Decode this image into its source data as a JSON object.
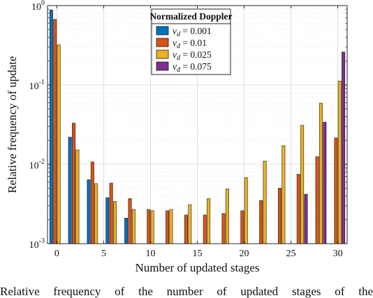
{
  "chart_data": {
    "type": "bar",
    "xlabel": "Number of updated stages",
    "ylabel": "Relative frequency of update",
    "yscale": "log",
    "ylim": [
      0.001,
      1
    ],
    "xlim": [
      -1,
      31
    ],
    "grid": "on",
    "legend": {
      "title": "Normalized Doppler",
      "placement": "top-center",
      "entries": [
        "ν_d = 0.001",
        "ν_d = 0.01",
        "ν_d = 0.025",
        "ν_d = 0.075"
      ]
    },
    "xticks": [
      0,
      5,
      10,
      15,
      20,
      25,
      30
    ],
    "yticks": [
      {
        "value": 1,
        "base": "10",
        "exp": "0"
      },
      {
        "value": 0.1,
        "base": "10",
        "exp": "-1"
      },
      {
        "value": 0.01,
        "base": "10",
        "exp": "-2"
      },
      {
        "value": 0.001,
        "base": "10",
        "exp": "-3"
      }
    ],
    "categories": [
      0,
      2,
      4,
      6,
      8,
      10,
      12,
      14,
      16,
      18,
      20,
      22,
      24,
      26,
      28,
      30
    ],
    "series": [
      {
        "sym": "ν",
        "sub": "d",
        "val": " = 0.001",
        "color": "#0072BD",
        "values": [
          0.88,
          0.022,
          0.0064,
          0.0038,
          0.0021,
          null,
          null,
          null,
          null,
          null,
          null,
          null,
          null,
          null,
          null,
          null
        ]
      },
      {
        "sym": "ν",
        "sub": "d",
        "val": " = 0.01",
        "color": "#D95319",
        "values": [
          0.67,
          0.033,
          0.0107,
          0.0058,
          0.0037,
          0.0027,
          0.0026,
          0.0023,
          0.0023,
          0.0024,
          0.0026,
          0.0035,
          0.005,
          0.0075,
          0.0125,
          0.0215
        ]
      },
      {
        "sym": "ν",
        "sub": "d",
        "val": " = 0.025",
        "color": "#EDB120",
        "values": [
          0.32,
          0.0152,
          0.0057,
          0.0034,
          0.0027,
          0.0026,
          0.0027,
          0.0031,
          0.0037,
          0.0049,
          0.0068,
          0.011,
          0.0172,
          0.031,
          0.059,
          0.112
        ]
      },
      {
        "sym": "ν",
        "sub": "d",
        "val": " = 0.075",
        "color": "#7E2F8E",
        "values": [
          null,
          null,
          null,
          null,
          null,
          null,
          null,
          null,
          null,
          null,
          null,
          null,
          null,
          0.0042,
          0.034,
          0.26
        ]
      }
    ]
  },
  "caption": "Relative frequency of the number of updated stages of the"
}
